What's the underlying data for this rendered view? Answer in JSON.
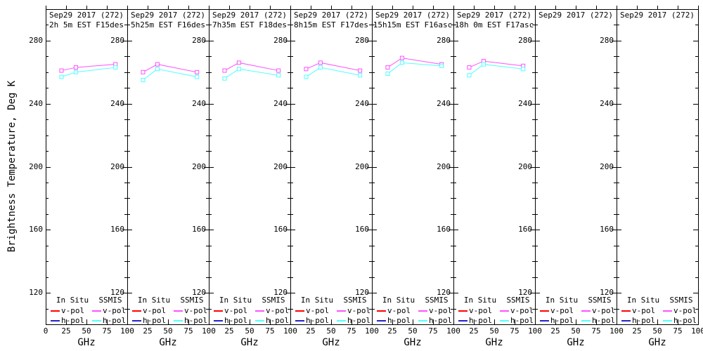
{
  "figure": {
    "y_axis": {
      "title": "Brightness Temperature, Deg K",
      "tick_labels": [
        "280",
        "240",
        "200",
        "160",
        "120"
      ],
      "tick_values": [
        280,
        240,
        200,
        160,
        120
      ],
      "range": [
        100,
        300
      ],
      "minor_step": 10
    },
    "x_axis": {
      "title": "GHz",
      "tick_labels": [
        "0",
        "25",
        "50",
        "75",
        "100"
      ],
      "tick_values": [
        0,
        25,
        50,
        75,
        100
      ],
      "range": [
        0,
        100
      ]
    },
    "legend": {
      "columns": [
        "In Situ",
        "SSMIS"
      ],
      "entries": [
        {
          "label": "v-pol",
          "in_situ_color": "#ff0000",
          "ssmis_color": "#ff50ff"
        },
        {
          "label": "h-pol",
          "in_situ_color": "#2222cc",
          "ssmis_color": "#50ffff"
        }
      ]
    },
    "colors": {
      "axis": "#000000",
      "background": "#ffffff"
    }
  },
  "chart_data": [
    {
      "type": "line",
      "title": "Sep29 2017 (272)",
      "subtitle": "2h 5m EST F15des",
      "x": [
        19.35,
        37,
        85.5
      ],
      "xlim": [
        0,
        100
      ],
      "ylim": [
        100,
        300
      ],
      "series": [
        {
          "name": "SSMIS v-pol",
          "color": "#ff50ff",
          "values": [
            261,
            263,
            265
          ]
        },
        {
          "name": "SSMIS h-pol",
          "color": "#50ffff",
          "values": [
            257,
            260,
            263
          ]
        }
      ]
    },
    {
      "type": "line",
      "title": "Sep29 2017 (272)",
      "subtitle": "5h25m EST F16des",
      "x": [
        19.35,
        37,
        85.5
      ],
      "xlim": [
        0,
        100
      ],
      "ylim": [
        100,
        300
      ],
      "series": [
        {
          "name": "SSMIS v-pol",
          "color": "#ff50ff",
          "values": [
            260,
            265,
            260
          ]
        },
        {
          "name": "SSMIS h-pol",
          "color": "#50ffff",
          "values": [
            255,
            262,
            257
          ]
        }
      ]
    },
    {
      "type": "line",
      "title": "Sep29 2017 (272)",
      "subtitle": "7h35m EST F18des",
      "x": [
        19.35,
        37,
        85.5
      ],
      "xlim": [
        0,
        100
      ],
      "ylim": [
        100,
        300
      ],
      "series": [
        {
          "name": "SSMIS v-pol",
          "color": "#ff50ff",
          "values": [
            261,
            266,
            261
          ]
        },
        {
          "name": "SSMIS h-pol",
          "color": "#50ffff",
          "values": [
            256,
            262,
            258
          ]
        }
      ]
    },
    {
      "type": "line",
      "title": "Sep29 2017 (272)",
      "subtitle": "8h15m EST F17des",
      "x": [
        19.35,
        37,
        85.5
      ],
      "xlim": [
        0,
        100
      ],
      "ylim": [
        100,
        300
      ],
      "series": [
        {
          "name": "SSMIS v-pol",
          "color": "#ff50ff",
          "values": [
            262,
            266,
            261
          ]
        },
        {
          "name": "SSMIS h-pol",
          "color": "#50ffff",
          "values": [
            257,
            263,
            258
          ]
        }
      ]
    },
    {
      "type": "line",
      "title": "Sep29 2017 (272)",
      "subtitle": "15h15m EST F16asc",
      "x": [
        19.35,
        37,
        85.5
      ],
      "xlim": [
        0,
        100
      ],
      "ylim": [
        100,
        300
      ],
      "series": [
        {
          "name": "SSMIS v-pol",
          "color": "#ff50ff",
          "values": [
            263,
            269,
            265
          ]
        },
        {
          "name": "SSMIS h-pol",
          "color": "#50ffff",
          "values": [
            259,
            266,
            264
          ]
        }
      ]
    },
    {
      "type": "line",
      "title": "Sep29 2017 (272)",
      "subtitle": "18h 0m EST F17asc",
      "x": [
        19.35,
        37,
        85.5
      ],
      "xlim": [
        0,
        100
      ],
      "ylim": [
        100,
        300
      ],
      "series": [
        {
          "name": "SSMIS v-pol",
          "color": "#ff50ff",
          "values": [
            263,
            267,
            264
          ]
        },
        {
          "name": "SSMIS h-pol",
          "color": "#50ffff",
          "values": [
            258,
            265,
            262
          ]
        }
      ]
    },
    {
      "type": "line",
      "title": "Sep29 2017 (272)",
      "subtitle": "",
      "x": [
        19.35,
        37,
        85.5
      ],
      "xlim": [
        0,
        100
      ],
      "ylim": [
        100,
        300
      ],
      "series": []
    },
    {
      "type": "line",
      "title": "Sep29 2017 (272)",
      "subtitle": "",
      "x": [
        19.35,
        37,
        85.5
      ],
      "xlim": [
        0,
        100
      ],
      "ylim": [
        100,
        300
      ],
      "series": []
    }
  ]
}
